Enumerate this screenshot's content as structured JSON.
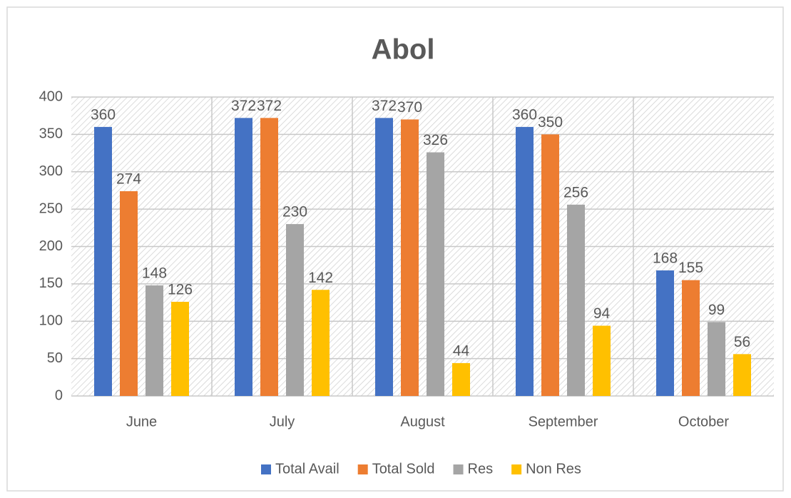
{
  "chart_data": {
    "type": "bar",
    "title": "Abol",
    "categories": [
      "June",
      "July",
      "August",
      "September",
      "October"
    ],
    "series": [
      {
        "name": "Total Avail",
        "color": "#4472c4",
        "values": [
          360,
          372,
          372,
          360,
          168
        ]
      },
      {
        "name": "Total Sold",
        "color": "#ed7d31",
        "values": [
          274,
          372,
          370,
          350,
          155
        ]
      },
      {
        "name": "Res",
        "color": "#a5a5a5",
        "values": [
          148,
          230,
          326,
          256,
          99
        ]
      },
      {
        "name": "Non Res",
        "color": "#ffc000",
        "values": [
          126,
          142,
          44,
          94,
          56
        ]
      }
    ],
    "ylim": [
      0,
      400
    ],
    "yticks": [
      0,
      50,
      100,
      150,
      200,
      250,
      300,
      350,
      400
    ],
    "grid": true,
    "legend": "bottom"
  }
}
